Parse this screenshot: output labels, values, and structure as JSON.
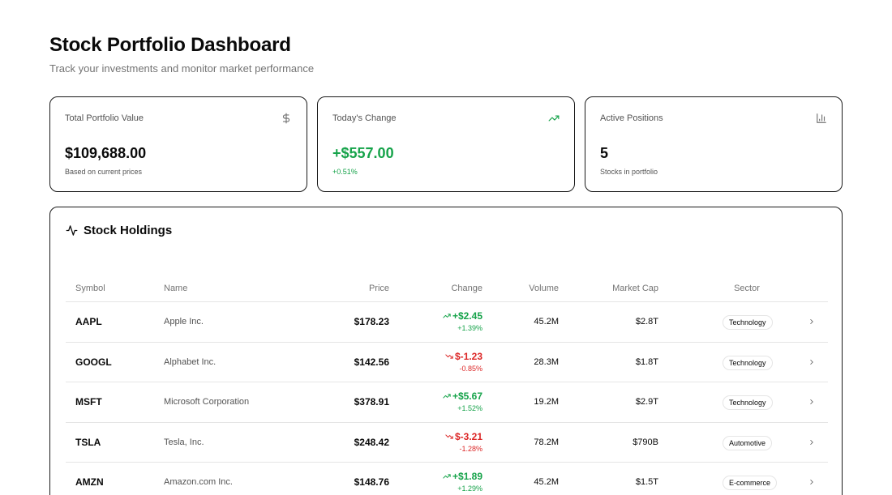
{
  "header": {
    "title": "Stock Portfolio Dashboard",
    "subtitle": "Track your investments and monitor market performance"
  },
  "cards": [
    {
      "title": "Total Portfolio Value",
      "icon": "dollar-icon",
      "value": "$109,688.00",
      "sub": "Based on current prices"
    },
    {
      "title": "Today's Change",
      "icon": "trending-up-icon",
      "value": "+$557.00",
      "sub": "+0.51%"
    },
    {
      "title": "Active Positions",
      "icon": "bar-chart-icon",
      "value": "5",
      "sub": "Stocks in portfolio"
    }
  ],
  "colors": {
    "positive": "#16a34a",
    "negative": "#dc2626"
  },
  "holdings": {
    "title": "Stock Holdings",
    "icon": "activity-icon",
    "columns": [
      "Symbol",
      "Name",
      "Price",
      "Change",
      "Volume",
      "Market Cap",
      "Sector"
    ],
    "rows": [
      {
        "symbol": "AAPL",
        "name": "Apple Inc.",
        "price": "$178.23",
        "change": "+$2.45",
        "pct": "+1.39%",
        "direction": "up",
        "volume": "45.2M",
        "mcap": "$2.8T",
        "sector": "Technology"
      },
      {
        "symbol": "GOOGL",
        "name": "Alphabet Inc.",
        "price": "$142.56",
        "change": "$-1.23",
        "pct": "-0.85%",
        "direction": "down",
        "volume": "28.3M",
        "mcap": "$1.8T",
        "sector": "Technology"
      },
      {
        "symbol": "MSFT",
        "name": "Microsoft Corporation",
        "price": "$378.91",
        "change": "+$5.67",
        "pct": "+1.52%",
        "direction": "up",
        "volume": "19.2M",
        "mcap": "$2.9T",
        "sector": "Technology"
      },
      {
        "symbol": "TSLA",
        "name": "Tesla, Inc.",
        "price": "$248.42",
        "change": "$-3.21",
        "pct": "-1.28%",
        "direction": "down",
        "volume": "78.2M",
        "mcap": "$790B",
        "sector": "Automotive"
      },
      {
        "symbol": "AMZN",
        "name": "Amazon.com Inc.",
        "price": "$148.76",
        "change": "+$1.89",
        "pct": "+1.29%",
        "direction": "up",
        "volume": "45.2M",
        "mcap": "$1.5T",
        "sector": "E-commerce"
      }
    ]
  }
}
